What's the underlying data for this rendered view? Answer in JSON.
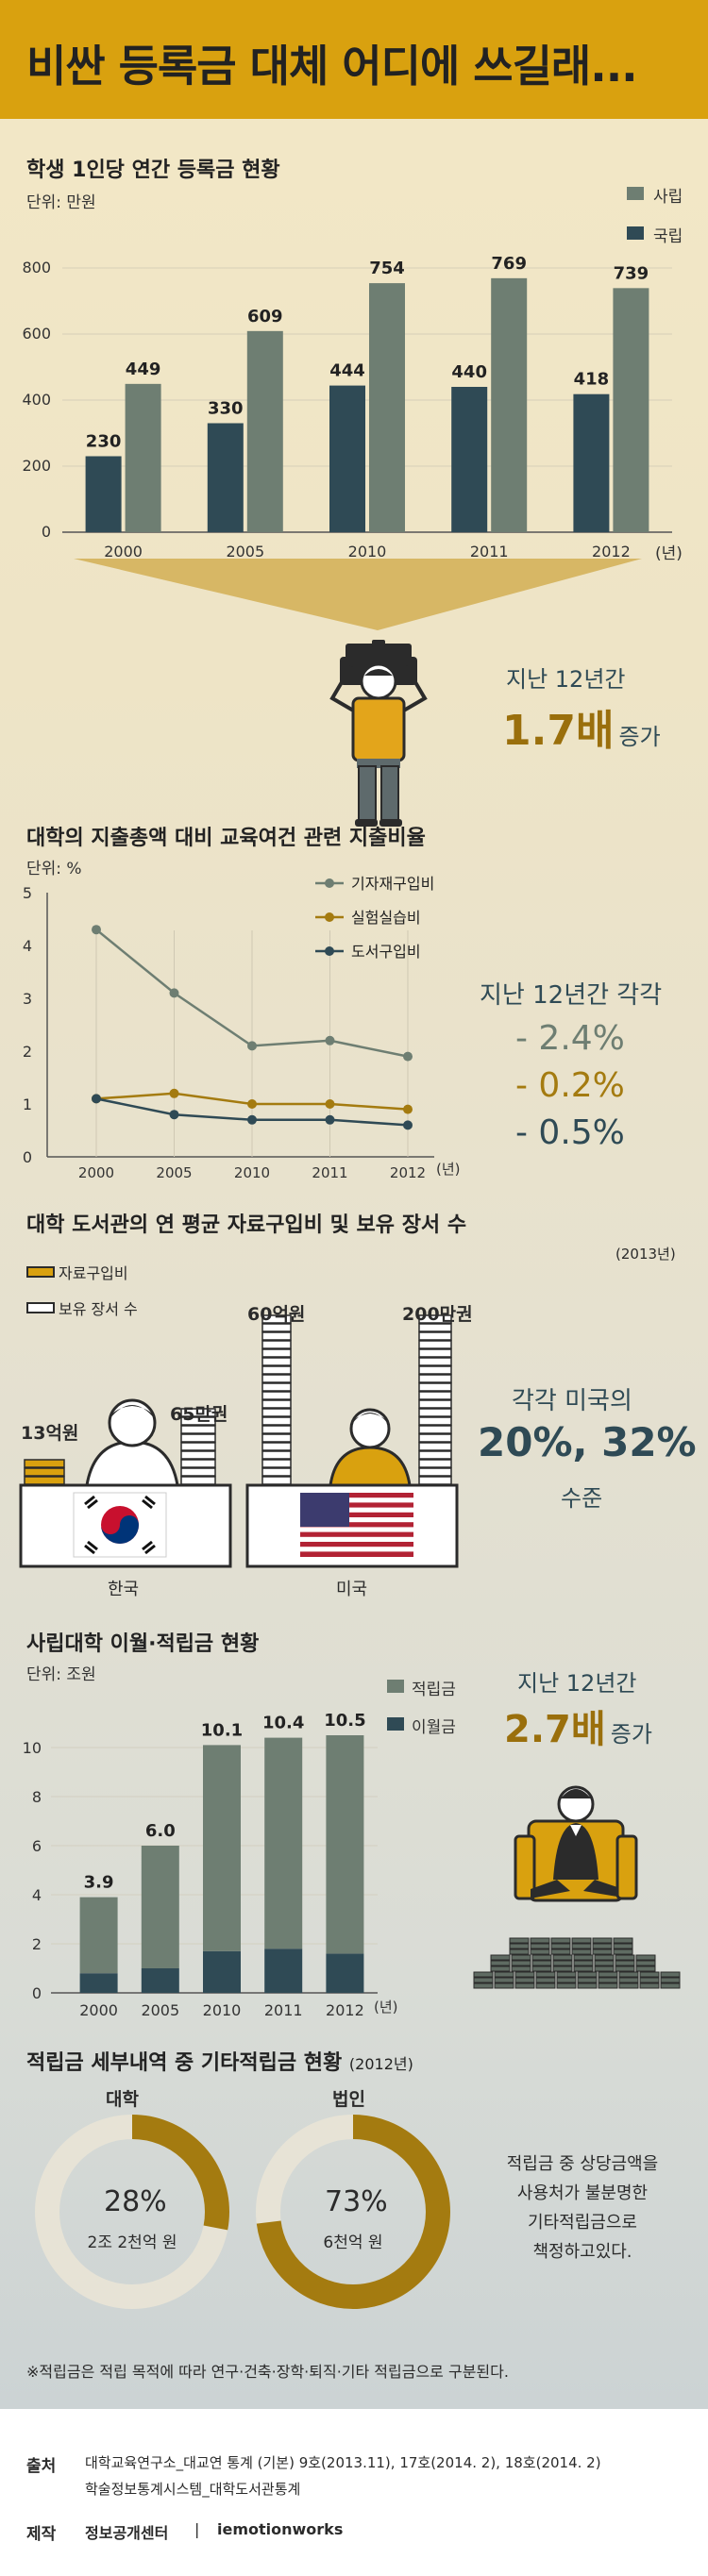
{
  "title": "비싼 등록금 대체 어디에 쓰길래...",
  "colors": {
    "gold": "#d9a10f",
    "private": "#6e7e72",
    "public": "#2f4a55",
    "accent_gold": "#a47b10"
  },
  "s1": {
    "title": "학생 1인당 연간 등록금 현황",
    "unit": "단위: 만원",
    "legend_private": "사립",
    "legend_public": "국립",
    "year_suffix": "(년)",
    "note_line1": "지난 12년간",
    "note_big": "1.7배",
    "note_suffix": "증가"
  },
  "s2": {
    "title": "대학의 지출총액 대비 교육여건 관련 지출비율",
    "unit": "단위: %",
    "year_suffix": "(년)",
    "note_title": "지난 12년간 각각",
    "note_v1": "- 2.4%",
    "note_v2": "- 0.2%",
    "note_v3": "- 0.5%"
  },
  "s3": {
    "title": "대학 도서관의 연 평균 자료구입비 및 보유 장서 수",
    "year_note": "(2013년)",
    "legend_budget": "자료구입비",
    "legend_books": "보유 장서 수",
    "kr_budget": "13억원",
    "kr_books": "65만권",
    "us_budget": "60억원",
    "us_books": "200만권",
    "kr_label": "한국",
    "us_label": "미국",
    "note_line1": "각각 미국의",
    "note_big": "20%, 32%",
    "note_line3": "수준"
  },
  "s4": {
    "title": "사립대학 이월·적립금 현황",
    "unit": "단위: 조원",
    "legend_reserve": "적립금",
    "legend_carry": "이월금",
    "year_suffix": "(년)",
    "note_line1": "지난 12년간",
    "note_big": "2.7배",
    "note_suffix": "증가"
  },
  "s5": {
    "title": "적립금 세부내역 중 기타적립금 현황",
    "year_note": "(2012년)",
    "donut1_label": "대학",
    "donut1_pct": "28%",
    "donut1_amount": "2조 2천억 원",
    "donut2_label": "법인",
    "donut2_pct": "73%",
    "donut2_amount": "6천억 원",
    "note_l1": "적립금 중 상당금액을",
    "note_l2": "사용처가 불분명한",
    "note_l3": "기타적립금으로",
    "note_l4": "책정하고있다.",
    "footnote": "※적립금은 적립 목적에 따라 연구·건축·장학·퇴직·기타 적립금으로 구분된다."
  },
  "footer": {
    "source_label": "출처",
    "source_l1": "대학교육연구소_대교연 통계 (기본) 9호(2013.11), 17호(2014. 2), 18호(2014. 2)",
    "source_l2": "학술정보통계시스템_대학도서관통계",
    "made_label": "제작",
    "made_by": "정보공개센터",
    "separator": "|",
    "made_by2": "iemotionworks"
  },
  "chart_data": [
    {
      "type": "bar",
      "title": "학생 1인당 연간 등록금 현황",
      "ylabel": "단위: 만원",
      "categories": [
        "2000",
        "2005",
        "2010",
        "2011",
        "2012"
      ],
      "series": [
        {
          "name": "국립",
          "values": [
            230,
            330,
            444,
            440,
            418
          ]
        },
        {
          "name": "사립",
          "values": [
            449,
            609,
            754,
            769,
            739
          ]
        }
      ],
      "yticks": [
        "0",
        "200",
        "400",
        "600",
        "800"
      ],
      "ylim": [
        0,
        800
      ],
      "legend": "top-right"
    },
    {
      "type": "line",
      "title": "대학의 지출총액 대비 교육여건 관련 지출비율",
      "ylabel": "단위: %",
      "categories": [
        "2000",
        "2005",
        "2010",
        "2011",
        "2012"
      ],
      "series": [
        {
          "name": "기자재구입비",
          "values": [
            4.3,
            3.1,
            2.1,
            2.2,
            1.9
          ],
          "color": "#6e7e72"
        },
        {
          "name": "실험실습비",
          "values": [
            1.1,
            1.2,
            1.0,
            1.0,
            0.9
          ],
          "color": "#a47b10"
        },
        {
          "name": "도서구입비",
          "values": [
            1.1,
            0.8,
            0.7,
            0.7,
            0.6
          ],
          "color": "#2f4a55"
        }
      ],
      "yticks": [
        "0",
        "1",
        "2",
        "3",
        "4",
        "5"
      ],
      "ylim": [
        0,
        5
      ],
      "legend": "top-right"
    },
    {
      "type": "bar",
      "title": "사립대학 이월·적립금 현황",
      "ylabel": "단위: 조원",
      "categories": [
        "2000",
        "2005",
        "2010",
        "2011",
        "2012"
      ],
      "series": [
        {
          "name": "적립금",
          "values": [
            3.1,
            5.0,
            8.4,
            8.6,
            8.9
          ]
        },
        {
          "name": "이월금",
          "values": [
            0.8,
            1.0,
            1.7,
            1.8,
            1.6
          ]
        }
      ],
      "totals": [
        "3.9",
        "6.0",
        "10.1",
        "10.4",
        "10.5"
      ],
      "yticks": [
        "0",
        "2",
        "4",
        "6",
        "8",
        "10"
      ],
      "ylim": [
        0,
        12
      ],
      "stacked": true,
      "legend": "top-right"
    },
    {
      "type": "pie",
      "title": "대학",
      "values": [
        28,
        72
      ]
    },
    {
      "type": "pie",
      "title": "법인",
      "values": [
        73,
        27
      ]
    }
  ]
}
